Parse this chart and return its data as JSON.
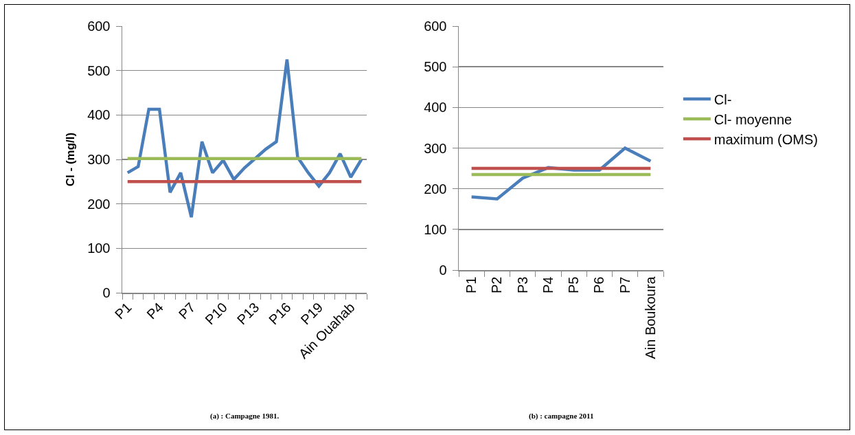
{
  "chart_data": [
    {
      "type": "line",
      "ylabel": "Cl - (mg/l)",
      "categories": [
        "P1",
        null,
        null,
        "P4",
        null,
        null,
        "P7",
        null,
        null,
        "P10",
        null,
        null,
        "P13",
        null,
        null,
        "P16",
        null,
        null,
        "P19",
        null,
        null,
        "Ain Ouahab",
        null
      ],
      "series": [
        {
          "color": "#4a7ebb",
          "values": [
            270,
            284,
            413,
            413,
            226,
            270,
            170,
            340,
            270,
            298,
            255,
            281,
            302,
            323,
            340,
            525,
            305,
            270,
            240,
            270,
            313,
            260,
            300
          ]
        },
        {
          "color": "#9bbb59",
          "values": [
            302,
            302,
            302,
            302,
            302,
            302,
            302,
            302,
            302,
            302,
            302,
            302,
            302,
            302,
            302,
            302,
            302,
            302,
            302,
            302,
            302,
            302,
            302
          ]
        },
        {
          "color": "#c0504d",
          "values": [
            250,
            250,
            250,
            250,
            250,
            250,
            250,
            250,
            250,
            250,
            250,
            250,
            250,
            250,
            250,
            250,
            250,
            250,
            250,
            250,
            250,
            250,
            250
          ]
        }
      ],
      "ylim": [
        0,
        600
      ],
      "yticks": [
        0,
        100,
        200,
        300,
        400,
        500,
        600
      ],
      "grid": "y",
      "legend": false,
      "annotations": [
        "(a) : Campagne 1981."
      ]
    },
    {
      "type": "line",
      "categories": [
        "P1",
        "P2",
        "P3",
        "P4",
        "P5",
        "P6",
        "P7",
        "Ain Boukoura"
      ],
      "series": [
        {
          "name": "Cl-",
          "color": "#4a7ebb",
          "values": [
            180,
            175,
            226,
            252,
            246,
            246,
            300,
            268
          ]
        },
        {
          "name": "Cl- moyenne",
          "color": "#9bbb59",
          "values": [
            235,
            235,
            235,
            235,
            235,
            235,
            235,
            235
          ]
        },
        {
          "name": "maximum (OMS)",
          "color": "#c0504d",
          "values": [
            250,
            250,
            250,
            250,
            250,
            250,
            250,
            250
          ]
        }
      ],
      "ylim": [
        0,
        600
      ],
      "yticks": [
        0,
        100,
        200,
        300,
        400,
        500,
        600
      ],
      "grid": "y",
      "legend": "right",
      "annotations": [
        "(b) : campagne 2011"
      ]
    }
  ]
}
